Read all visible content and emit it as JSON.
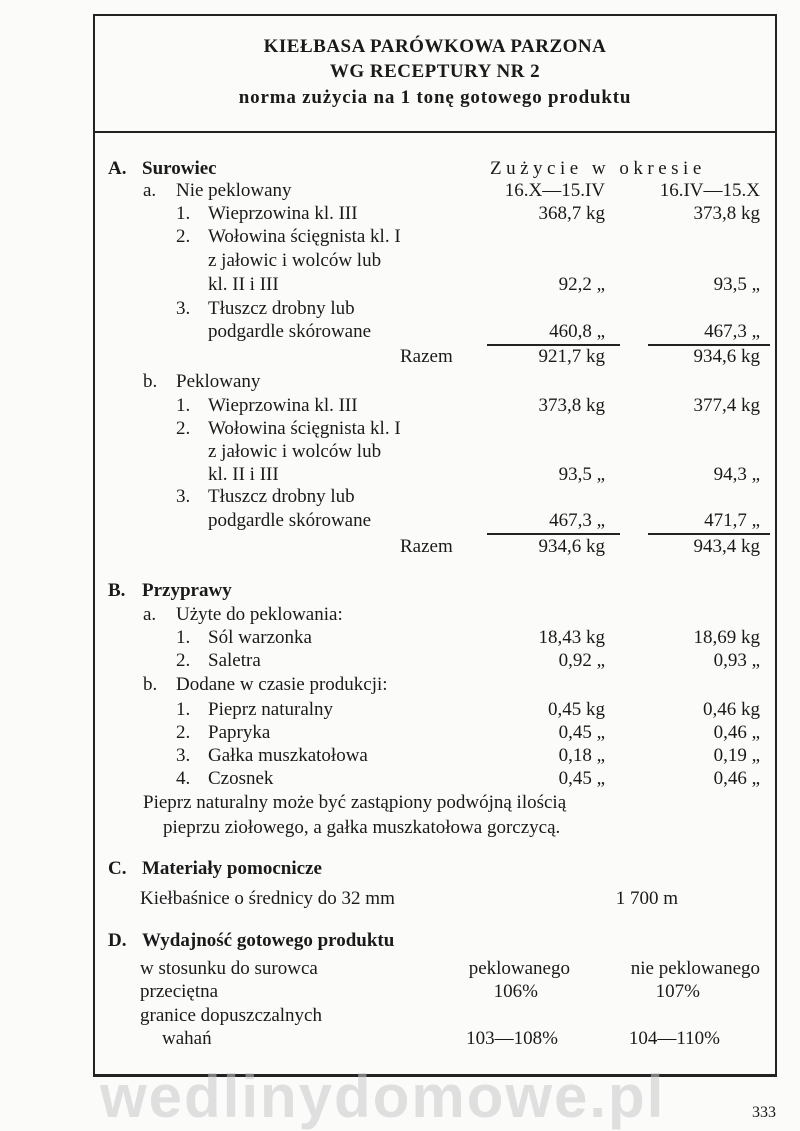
{
  "title": {
    "line1": "KIEŁBASA PARÓWKOWA PARZONA",
    "line2": "WG RECEPTURY NR 2",
    "line3": "norma zużycia na 1 tonę gotowego produktu"
  },
  "rows": [
    {
      "num": "A.",
      "label": "Surowiec",
      "v1": "",
      "v2": "",
      "header": "Zużycie w okresie",
      "bold": true
    },
    {
      "num": "a.",
      "label": "Nie peklowany",
      "v1": "16.X—15.IV",
      "v2": "16.IV—15.X"
    },
    {
      "num": "1.",
      "label": "Wieprzowina kl. III",
      "v1": "368,7 kg",
      "v2": "373,8 kg"
    },
    {
      "num": "2.",
      "label": "Wołowina ścięgnista kl. I",
      "v1": "",
      "v2": ""
    },
    {
      "num": "",
      "label": "z jałowic i wolców lub",
      "v1": "",
      "v2": ""
    },
    {
      "num": "",
      "label": "kl. II i III",
      "v1": "92,2 „",
      "v2": "93,5 „"
    },
    {
      "num": "3.",
      "label": "Tłuszcz drobny lub",
      "v1": "",
      "v2": ""
    },
    {
      "num": "",
      "label": "podgardle skórowane",
      "v1": "460,8 „",
      "v2": "467,3 „"
    },
    {
      "num": "",
      "label": "Razem",
      "v1": "921,7 kg",
      "v2": "934,6 kg"
    },
    {
      "num": "b.",
      "label": "Peklowany",
      "v1": "",
      "v2": ""
    },
    {
      "num": "1.",
      "label": "Wieprzowina kl. III",
      "v1": "373,8 kg",
      "v2": "377,4 kg"
    },
    {
      "num": "2.",
      "label": "Wołowina ścięgnista kl. I",
      "v1": "",
      "v2": ""
    },
    {
      "num": "",
      "label": "z jałowic i wolców lub",
      "v1": "",
      "v2": ""
    },
    {
      "num": "",
      "label": "kl. II i III",
      "v1": "93,5 „",
      "v2": "94,3 „"
    },
    {
      "num": "3.",
      "label": "Tłuszcz drobny lub",
      "v1": "",
      "v2": ""
    },
    {
      "num": "",
      "label": "podgardle skórowane",
      "v1": "467,3 „",
      "v2": "471,7 „"
    },
    {
      "num": "",
      "label": "Razem",
      "v1": "934,6 kg",
      "v2": "943,4 kg"
    },
    {
      "num": "B.",
      "label": "Przyprawy",
      "v1": "",
      "v2": "",
      "bold": true
    },
    {
      "num": "a.",
      "label": "Użyte do peklowania:",
      "v1": "",
      "v2": ""
    },
    {
      "num": "1.",
      "label": "Sól warzonka",
      "v1": "18,43 kg",
      "v2": "18,69 kg"
    },
    {
      "num": "2.",
      "label": "Saletra",
      "v1": "0,92 „",
      "v2": "0,93 „"
    },
    {
      "num": "b.",
      "label": "Dodane w czasie produkcji:",
      "v1": "",
      "v2": ""
    },
    {
      "num": "1.",
      "label": "Pieprz naturalny",
      "v1": "0,45 kg",
      "v2": "0,46 kg"
    },
    {
      "num": "2.",
      "label": "Papryka",
      "v1": "0,45 „",
      "v2": "0,46 „"
    },
    {
      "num": "3.",
      "label": "Gałka muszkatołowa",
      "v1": "0,18 „",
      "v2": "0,19 „"
    },
    {
      "num": "4.",
      "label": "Czosnek",
      "v1": "0,45 „",
      "v2": "0,46 „"
    },
    {
      "num": "",
      "label": "Pieprz naturalny może być zastąpiony podwójną ilością",
      "v1": "",
      "v2": ""
    },
    {
      "num": "",
      "label": "pieprzu ziołowego, a gałka muszkatołowa gorczycą.",
      "v1": "",
      "v2": ""
    },
    {
      "num": "C.",
      "label": "Materiały pomocnicze",
      "v1": "",
      "v2": "",
      "bold": true
    },
    {
      "num": "",
      "label": "Kiełbaśnice o średnicy do 32 mm",
      "v1": "1 700 m",
      "v2": ""
    },
    {
      "num": "D.",
      "label": "Wydajność gotowego produktu",
      "v1": "",
      "v2": "",
      "bold": true
    },
    {
      "num": "",
      "label": "w stosunku do surowca",
      "v1": "peklowanego",
      "v2": "nie peklowanego"
    },
    {
      "num": "",
      "label": "przeciętna",
      "v1": "106%",
      "v2": "107%"
    },
    {
      "num": "",
      "label": "granice dopuszczalnych",
      "v1": "",
      "v2": ""
    },
    {
      "num": "",
      "label": "wahań",
      "v1": "103—108%",
      "v2": "104—110%"
    }
  ],
  "watermark": "wedlinydomowe.pl",
  "page_number": "333"
}
